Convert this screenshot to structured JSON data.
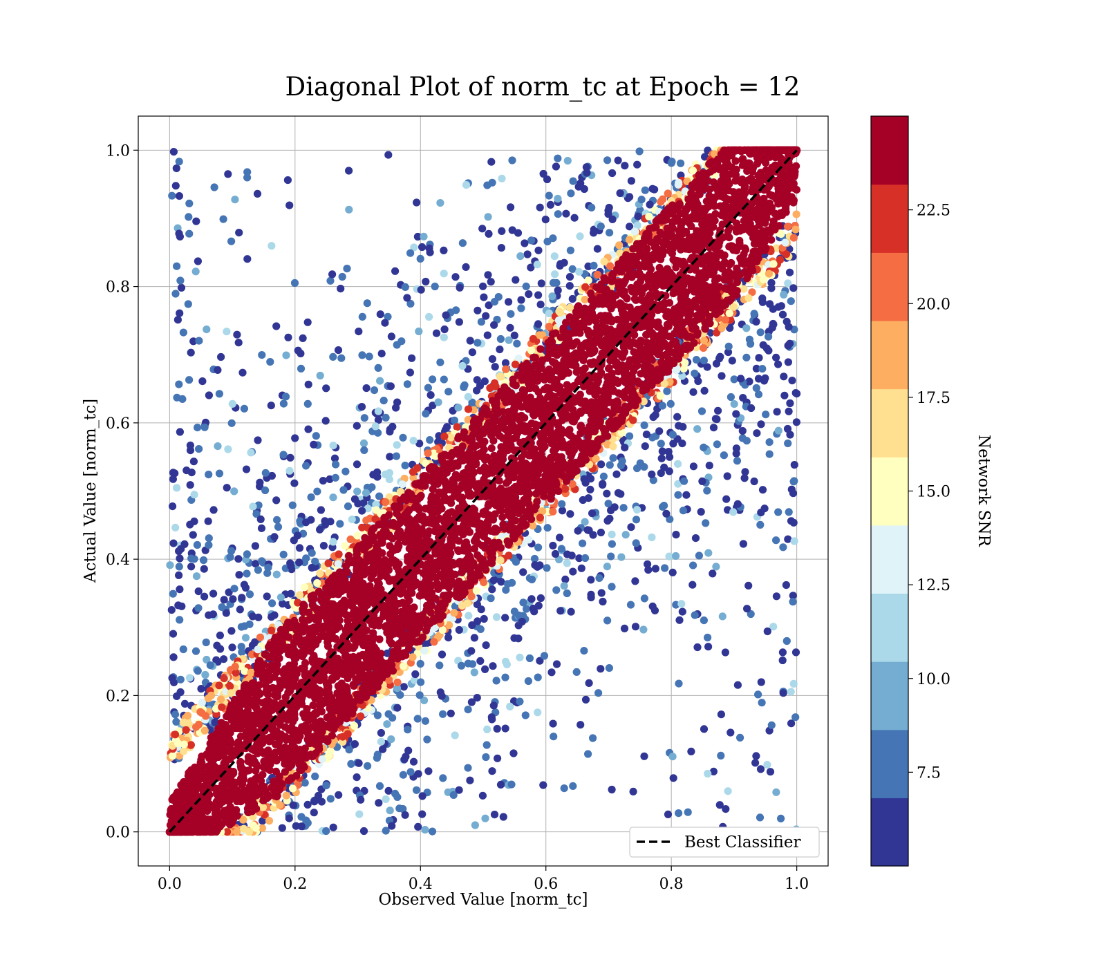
{
  "chart_data": {
    "type": "scatter",
    "title": "Diagonal Plot of norm_tc at Epoch = 12",
    "xlabel": "Observed Value [norm_tc]",
    "ylabel": "Actual Value [norm_tc]",
    "xlim": [
      -0.05,
      1.05
    ],
    "ylim": [
      -0.05,
      1.05
    ],
    "xticks": [
      "0.0",
      "0.2",
      "0.4",
      "0.6",
      "0.8",
      "1.0"
    ],
    "yticks": [
      "0.0",
      "0.2",
      "0.4",
      "0.6",
      "0.8",
      "1.0"
    ],
    "grid": true,
    "reference_line": {
      "name": "Best Classifier",
      "x": [
        0.0,
        1.0
      ],
      "y": [
        0.0,
        1.0
      ],
      "style": "dashed",
      "color": "#000000"
    },
    "legend": {
      "position": "lower-right",
      "entries": [
        "Best Classifier"
      ]
    },
    "colorbar": {
      "label": "Network SNR",
      "range": [
        5.0,
        25.0
      ],
      "tick_values": [
        7.5,
        10.0,
        12.5,
        15.0,
        17.5,
        20.0,
        22.5
      ],
      "tick_labels": [
        "7.5",
        "10.0",
        "12.5",
        "15.0",
        "17.5",
        "20.0",
        "22.5"
      ],
      "colors": [
        "#313695",
        "#4575b4",
        "#74add1",
        "#abd9e9",
        "#e0f3f8",
        "#ffffbf",
        "#fee090",
        "#fdae61",
        "#f46d43",
        "#d73027",
        "#a50026"
      ]
    },
    "point_distribution": {
      "description_values": "Dense band of high-SNR points along y = x; low-SNR points scattered away from the diagonal",
      "diagonal_band_halfwidth": 0.12,
      "snr_high": 24.0,
      "snr_low_range": [
        5.0,
        12.0
      ]
    }
  }
}
